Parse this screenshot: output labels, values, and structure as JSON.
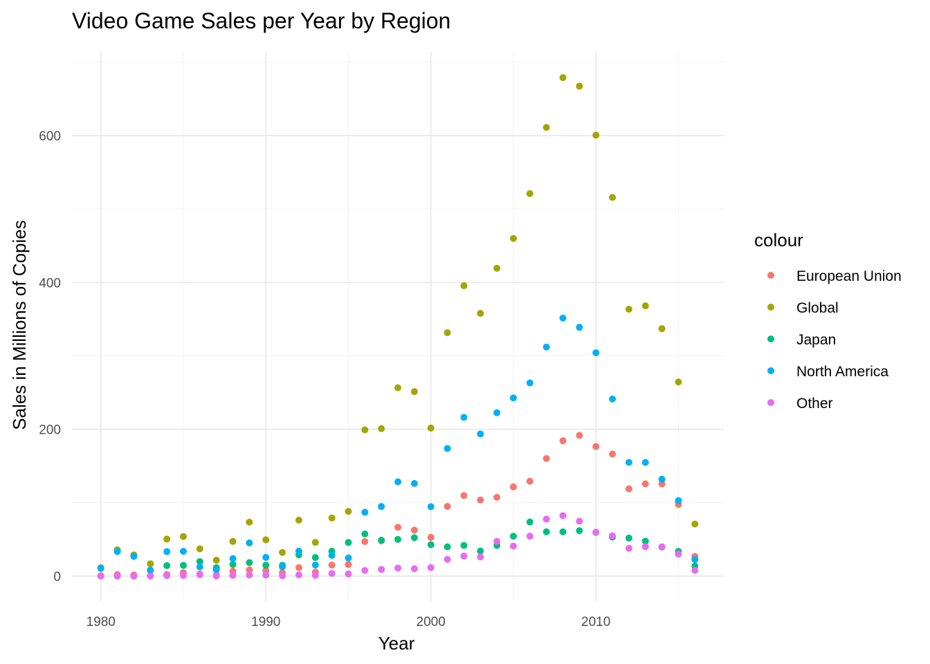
{
  "chart_data": {
    "type": "scatter",
    "title": "Video Game Sales per Year by Region",
    "xlabel": "Year",
    "ylabel": "Sales in Millions of Copies",
    "xlim": [
      1978.25,
      2017.75
    ],
    "ylim": [
      -34,
      714
    ],
    "xticks": [
      1980,
      1990,
      2000,
      2010
    ],
    "yticks": [
      0,
      200,
      400,
      600
    ],
    "grid": true,
    "legend": {
      "title": "colour",
      "position": "right"
    },
    "x": [
      1980,
      1981,
      1982,
      1983,
      1984,
      1985,
      1986,
      1987,
      1988,
      1989,
      1990,
      1991,
      1992,
      1993,
      1994,
      1995,
      1996,
      1997,
      1998,
      1999,
      2000,
      2001,
      2002,
      2003,
      2004,
      2005,
      2006,
      2007,
      2008,
      2009,
      2010,
      2011,
      2012,
      2013,
      2014,
      2015,
      2016
    ],
    "series": [
      {
        "name": "European Union",
        "color": "#F8766D",
        "values": [
          0.5,
          2,
          1.5,
          0.8,
          2.1,
          4.7,
          2.8,
          1.4,
          6.6,
          8.4,
          7.6,
          4.6,
          11.6,
          5.5,
          15,
          15.9,
          47,
          48,
          66.5,
          62.7,
          52.8,
          94.9,
          109.7,
          103.7,
          107.3,
          121.5,
          129.2,
          160.2,
          184.4,
          191.6,
          176.6,
          166.3,
          118.8,
          125.7,
          125.6,
          97.7,
          26.8
        ]
      },
      {
        "name": "Global",
        "color": "#A3A500",
        "values": [
          11.4,
          35.8,
          28.9,
          16.8,
          50.4,
          53.9,
          37.1,
          21.7,
          47.2,
          73.5,
          49.4,
          32.2,
          76.2,
          45.9,
          79.2,
          88.1,
          199.2,
          200.9,
          256.5,
          251.3,
          201.6,
          331.5,
          395.5,
          357.9,
          419.3,
          459.9,
          521,
          611.1,
          678.9,
          667.3,
          600.5,
          515.8,
          363.5,
          368.1,
          337,
          264.4,
          70.9
        ]
      },
      {
        "name": "Japan",
        "color": "#00BF7D",
        "values": [
          0,
          0,
          0,
          8.1,
          14.3,
          14.6,
          19.8,
          11.6,
          15.8,
          18.4,
          14.9,
          14.8,
          28.9,
          25.3,
          33.9,
          45.8,
          57.4,
          48.9,
          50,
          52.3,
          42.8,
          39.9,
          41.8,
          34.2,
          41.7,
          54.3,
          73.7,
          60.3,
          60.3,
          61.9,
          59.5,
          53,
          51.8,
          47.6,
          39.5,
          33.7,
          13.7
        ]
      },
      {
        "name": "North America",
        "color": "#00B0F6",
        "values": [
          10.6,
          33.4,
          26.9,
          7.8,
          33.3,
          33.7,
          12.5,
          8.5,
          23.9,
          45.2,
          25.5,
          12.8,
          33.9,
          15.1,
          28.2,
          24.8,
          86.8,
          94.8,
          128.4,
          126.1,
          94.5,
          173.9,
          216.2,
          193.6,
          222.5,
          242.6,
          263.1,
          312,
          351.4,
          338.9,
          304.2,
          241.2,
          154.9,
          154.8,
          131.9,
          102.8,
          22.7
        ]
      },
      {
        "name": "Other",
        "color": "#E76BF3",
        "values": [
          0.1,
          0.3,
          0.3,
          0.1,
          0.7,
          0.9,
          1.9,
          0.2,
          1,
          1.5,
          1.4,
          0.4,
          1.7,
          1.1,
          3.6,
          3,
          7.7,
          9.1,
          11,
          10.1,
          11.6,
          22.8,
          27.3,
          26.1,
          47.3,
          40.9,
          54.4,
          77.6,
          82.4,
          74.8,
          59.9,
          54.8,
          37.8,
          40.1,
          40,
          30.1,
          7.8
        ]
      }
    ]
  }
}
